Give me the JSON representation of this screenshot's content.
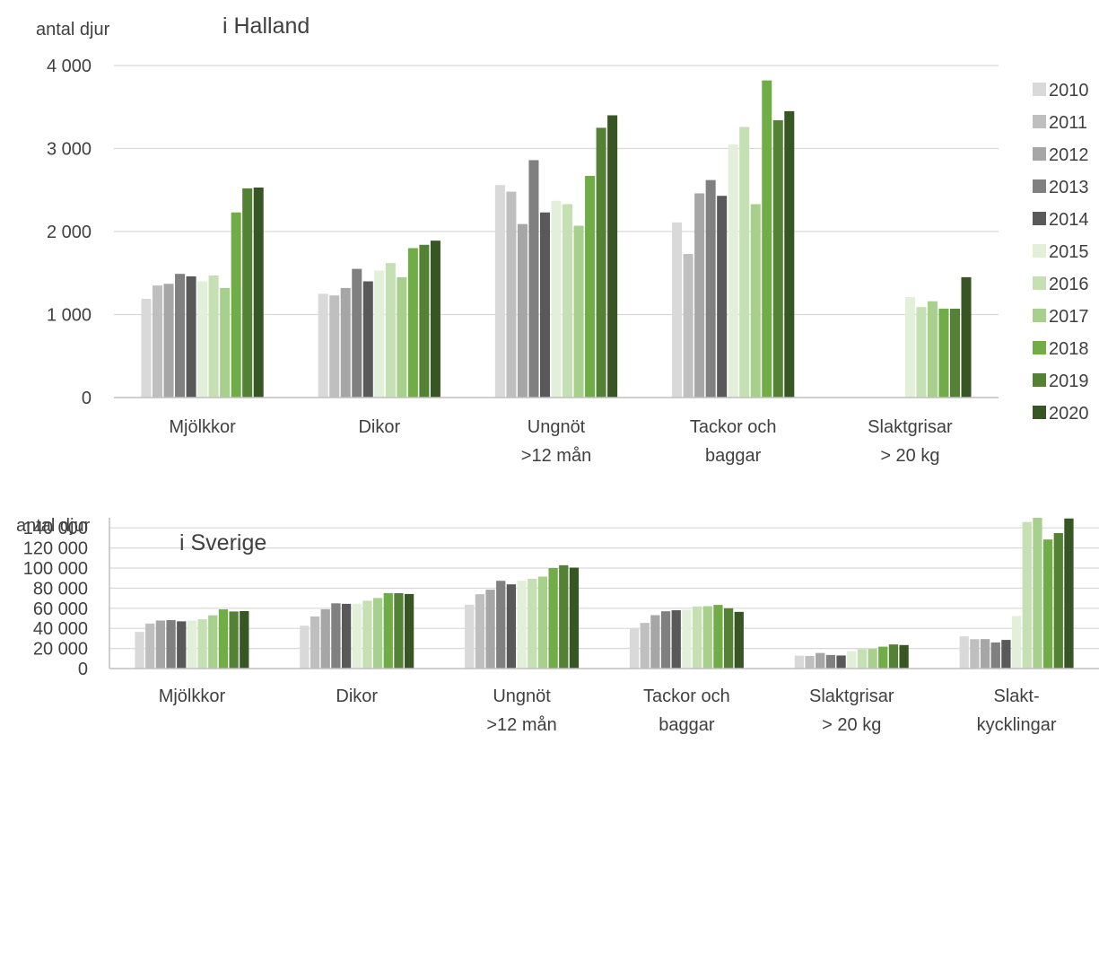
{
  "years": [
    "2010",
    "2011",
    "2012",
    "2013",
    "2014",
    "2015",
    "2016",
    "2017",
    "2018",
    "2019",
    "2020"
  ],
  "year_colors": [
    "#d9d9d9",
    "#bfbfbf",
    "#a6a6a6",
    "#808080",
    "#595959",
    "#e2efd9",
    "#c5e0b3",
    "#a8d08d",
    "#70ad47",
    "#548235",
    "#375623"
  ],
  "chart_data": [
    {
      "type": "bar",
      "title": "i Halland",
      "ylabel": "antal djur",
      "ylim": [
        0,
        4000
      ],
      "yticks": [
        0,
        1000,
        2000,
        3000,
        4000
      ],
      "ytick_labels": [
        "0",
        "1 000",
        "2 000",
        "3 000",
        "4 000"
      ],
      "legend_position": "right",
      "categories": [
        [
          "Mjölkkor"
        ],
        [
          "Dikor"
        ],
        [
          "Ungnöt",
          ">12 mån"
        ],
        [
          "Tackor och",
          "baggar"
        ],
        [
          "Slaktgrisar",
          "> 20 kg"
        ]
      ],
      "series": [
        {
          "name": "2010",
          "values": [
            1190,
            1250,
            2560,
            2110,
            null
          ]
        },
        {
          "name": "2011",
          "values": [
            1350,
            1230,
            2480,
            1730,
            null
          ]
        },
        {
          "name": "2012",
          "values": [
            1370,
            1320,
            2090,
            2460,
            null
          ]
        },
        {
          "name": "2013",
          "values": [
            1490,
            1550,
            2860,
            2620,
            null
          ]
        },
        {
          "name": "2014",
          "values": [
            1460,
            1400,
            2230,
            2430,
            null
          ]
        },
        {
          "name": "2015",
          "values": [
            1400,
            1530,
            2370,
            3050,
            1210
          ]
        },
        {
          "name": "2016",
          "values": [
            1470,
            1620,
            2330,
            3260,
            1090
          ]
        },
        {
          "name": "2017",
          "values": [
            1320,
            1450,
            2070,
            2330,
            1160
          ]
        },
        {
          "name": "2018",
          "values": [
            2230,
            1800,
            2670,
            3820,
            1070
          ]
        },
        {
          "name": "2019",
          "values": [
            2520,
            1840,
            3250,
            3340,
            1070
          ]
        },
        {
          "name": "2020",
          "values": [
            2530,
            1890,
            3400,
            3450,
            1450
          ]
        }
      ]
    },
    {
      "type": "bar",
      "title": "i Sverige",
      "ylabel": "antal djur",
      "ylim": [
        0,
        150000
      ],
      "yticks": [
        0,
        20000,
        40000,
        60000,
        80000,
        100000,
        120000,
        140000
      ],
      "ytick_labels": [
        "0",
        "20 000",
        "40 000",
        "60 000",
        "80 000",
        "100 000",
        "120 000",
        "140 000"
      ],
      "categories": [
        [
          "Mjölkkor"
        ],
        [
          "Dikor"
        ],
        [
          "Ungnöt",
          ">12 mån"
        ],
        [
          "Tackor och",
          "baggar"
        ],
        [
          "Slaktgrisar",
          "> 20 kg"
        ],
        [
          "Slakt-",
          "kycklingar"
        ]
      ],
      "series": [
        {
          "name": "2010",
          "values": [
            36500,
            42600,
            63500,
            40000,
            12800,
            32000
          ]
        },
        {
          "name": "2011",
          "values": [
            44800,
            51800,
            74000,
            45400,
            12500,
            29200
          ]
        },
        {
          "name": "2012",
          "values": [
            47800,
            59000,
            78500,
            53100,
            15500,
            29300
          ]
        },
        {
          "name": "2013",
          "values": [
            48200,
            64900,
            87300,
            57000,
            13500,
            26000
          ]
        },
        {
          "name": "2014",
          "values": [
            47000,
            64400,
            83800,
            58000,
            13000,
            28500
          ]
        },
        {
          "name": "2015",
          "values": [
            47700,
            64500,
            87300,
            58500,
            17300,
            52400
          ]
        },
        {
          "name": "2016",
          "values": [
            49000,
            67500,
            89300,
            61800,
            19300,
            145800
          ]
        },
        {
          "name": "2017",
          "values": [
            53000,
            70200,
            91500,
            62000,
            19500,
            150000
          ]
        },
        {
          "name": "2018",
          "values": [
            58900,
            75100,
            100000,
            63300,
            21800,
            128400
          ]
        },
        {
          "name": "2019",
          "values": [
            56800,
            75000,
            102800,
            60000,
            24000,
            134800
          ]
        },
        {
          "name": "2020",
          "values": [
            57200,
            74200,
            100400,
            56400,
            23400,
            149300
          ]
        }
      ]
    }
  ]
}
